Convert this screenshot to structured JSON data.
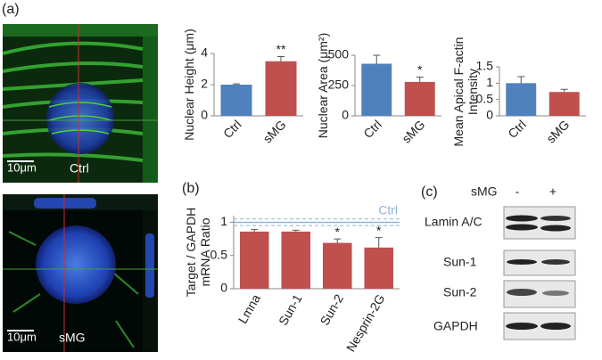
{
  "panels": {
    "a": "(a)",
    "b": "(b)",
    "c": "(c)"
  },
  "images": [
    {
      "scale_bar": "10μm",
      "label": "Ctrl"
    },
    {
      "scale_bar": "10μm",
      "label": "sMG"
    }
  ],
  "blot": {
    "header": "sMG",
    "lanes": [
      "-",
      "+"
    ],
    "rows": [
      "Lamin A/C",
      "Sun-1",
      "Sun-2",
      "GAPDH"
    ]
  },
  "chart_data": [
    {
      "type": "bar",
      "ylabel": "Nuclear Height (μm)",
      "categories": [
        "Ctrl",
        "sMG"
      ],
      "values": [
        2.0,
        3.5
      ],
      "errors": [
        0.05,
        0.3
      ],
      "colors": [
        "#4f81bd",
        "#c0504d"
      ],
      "significance": [
        null,
        "**"
      ],
      "ylim": [
        0,
        4
      ],
      "yticks": [
        0,
        2,
        4
      ]
    },
    {
      "type": "bar",
      "ylabel": "Nuclear Area (μm²)",
      "categories": [
        "Ctrl",
        "sMG"
      ],
      "values": [
        430,
        280
      ],
      "errors": [
        70,
        40
      ],
      "colors": [
        "#4f81bd",
        "#c0504d"
      ],
      "significance": [
        null,
        "*"
      ],
      "ylim": [
        0,
        500
      ],
      "yticks": [
        0,
        250,
        500
      ]
    },
    {
      "type": "bar",
      "ylabel": "Mean Apical F-actin Intensity",
      "categories": [
        "Ctrl",
        "sMG"
      ],
      "values": [
        1.0,
        0.73
      ],
      "errors": [
        0.2,
        0.08
      ],
      "colors": [
        "#4f81bd",
        "#c0504d"
      ],
      "significance": [
        null,
        null
      ],
      "ylim": [
        0,
        1.5
      ],
      "yticks": [
        0,
        0.5,
        1,
        1.5
      ]
    },
    {
      "type": "bar",
      "ylabel": "Target / GAPDH mRNA Ratio",
      "categories": [
        "Lmna",
        "Sun-1",
        "Sun-2",
        "Nesprin-2G"
      ],
      "values": [
        0.86,
        0.86,
        0.69,
        0.62
      ],
      "errors": [
        0.03,
        0.02,
        0.06,
        0.15
      ],
      "colors": [
        "#c0504d",
        "#c0504d",
        "#c0504d",
        "#c0504d"
      ],
      "significance": [
        null,
        null,
        "*",
        "*"
      ],
      "ylim": [
        0,
        1.1
      ],
      "yticks": [
        0,
        0.5,
        1
      ],
      "reference": {
        "label": "Ctrl",
        "value": 1,
        "band": [
          0.95,
          1.05
        ],
        "color": "#8fb4d9"
      }
    }
  ]
}
